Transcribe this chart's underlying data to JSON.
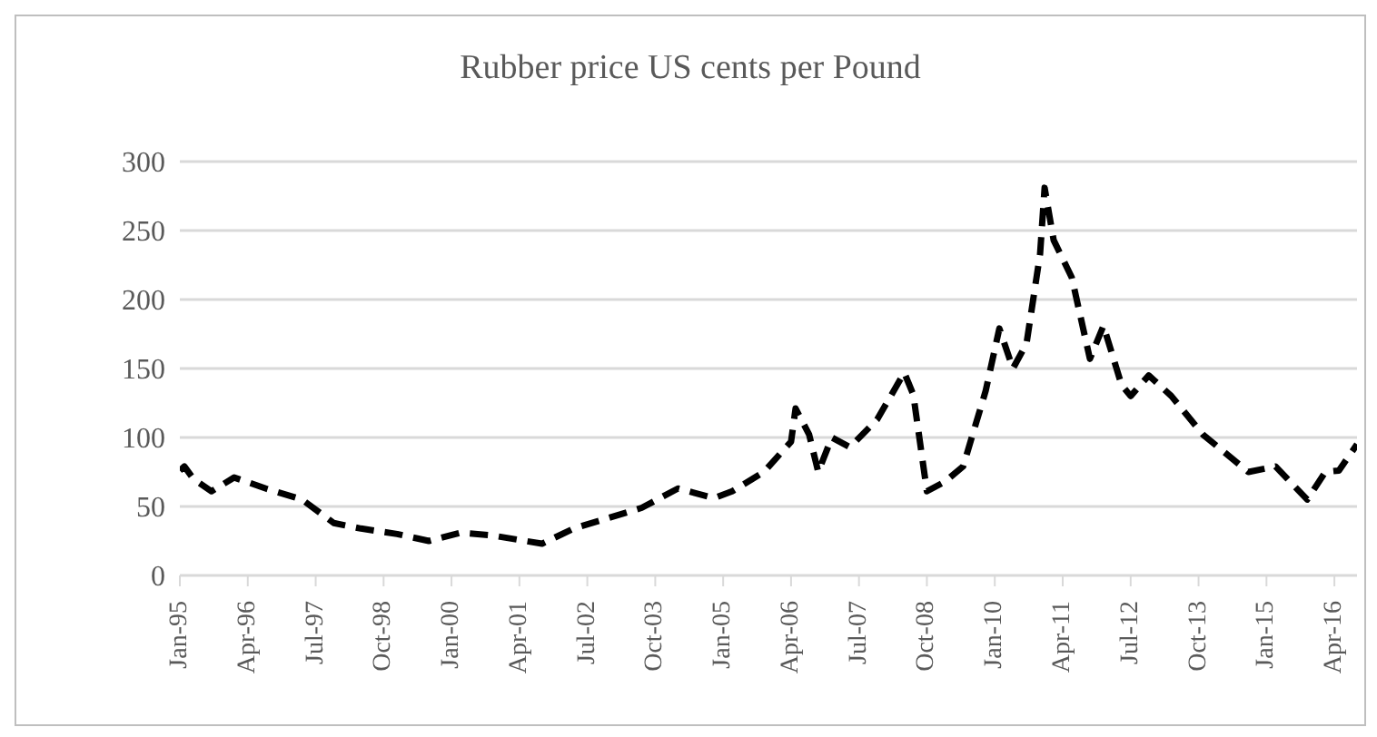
{
  "chart_data": {
    "type": "line",
    "title": "Rubber price US cents per Pound",
    "x": [
      "1995-01",
      "1995-02",
      "1995-04",
      "1995-08",
      "1996-01",
      "1996-08",
      "1997-04",
      "1997-11",
      "1998-05",
      "1999-01",
      "1999-08",
      "2000-03",
      "2000-10",
      "2001-09",
      "2002-04",
      "2002-11",
      "2003-07",
      "2004-03",
      "2004-11",
      "2005-03",
      "2005-10",
      "2006-04",
      "2006-05",
      "2006-08",
      "2006-10",
      "2007-01",
      "2007-05",
      "2007-11",
      "2008-05",
      "2008-07",
      "2008-10",
      "2009-02",
      "2009-06",
      "2009-11",
      "2010-02",
      "2010-05",
      "2010-08",
      "2010-11",
      "2010-12",
      "2011-02",
      "2011-06",
      "2011-10",
      "2012-01",
      "2012-05",
      "2012-07",
      "2012-11",
      "2013-04",
      "2013-11",
      "2014-09",
      "2015-03",
      "2015-10",
      "2016-02",
      "2016-05",
      "2016-09"
    ],
    "series": [
      {
        "color": "#000000",
        "values": [
          76,
          79,
          70,
          61,
          71,
          63,
          55,
          38,
          34,
          30,
          25,
          31,
          29,
          23,
          34,
          41,
          49,
          63,
          56,
          61,
          75,
          97,
          121,
          102,
          75,
          100,
          93,
          113,
          147,
          131,
          61,
          68,
          79,
          134,
          179,
          150,
          168,
          233,
          281,
          243,
          216,
          157,
          181,
          138,
          130,
          145,
          130,
          102,
          75,
          79,
          55,
          75,
          76,
          95
        ]
      }
    ],
    "xlim": [
      "1995-01",
      "2016-09"
    ],
    "xticks": [
      {
        "value": "1995-01",
        "label": "Jan-95"
      },
      {
        "value": "1996-04",
        "label": "Apr-96"
      },
      {
        "value": "1997-07",
        "label": "Jul-97"
      },
      {
        "value": "1998-10",
        "label": "Oct-98"
      },
      {
        "value": "2000-01",
        "label": "Jan-00"
      },
      {
        "value": "2001-04",
        "label": "Apr-01"
      },
      {
        "value": "2002-07",
        "label": "Jul-02"
      },
      {
        "value": "2003-10",
        "label": "Oct-03"
      },
      {
        "value": "2005-01",
        "label": "Jan-05"
      },
      {
        "value": "2006-04",
        "label": "Apr-06"
      },
      {
        "value": "2007-07",
        "label": "Jul-07"
      },
      {
        "value": "2008-10",
        "label": "Oct-08"
      },
      {
        "value": "2010-01",
        "label": "Jan-10"
      },
      {
        "value": "2011-04",
        "label": "Apr-11"
      },
      {
        "value": "2012-07",
        "label": "Jul-12"
      },
      {
        "value": "2013-10",
        "label": "Oct-13"
      },
      {
        "value": "2015-01",
        "label": "Jan-15"
      },
      {
        "value": "2016-04",
        "label": "Apr-16"
      }
    ],
    "ylim": [
      0,
      300
    ],
    "yticks": [
      0,
      50,
      100,
      150,
      200,
      250,
      300
    ],
    "grid": "y",
    "legend": false,
    "marker": "none",
    "line_style": "dashed"
  }
}
